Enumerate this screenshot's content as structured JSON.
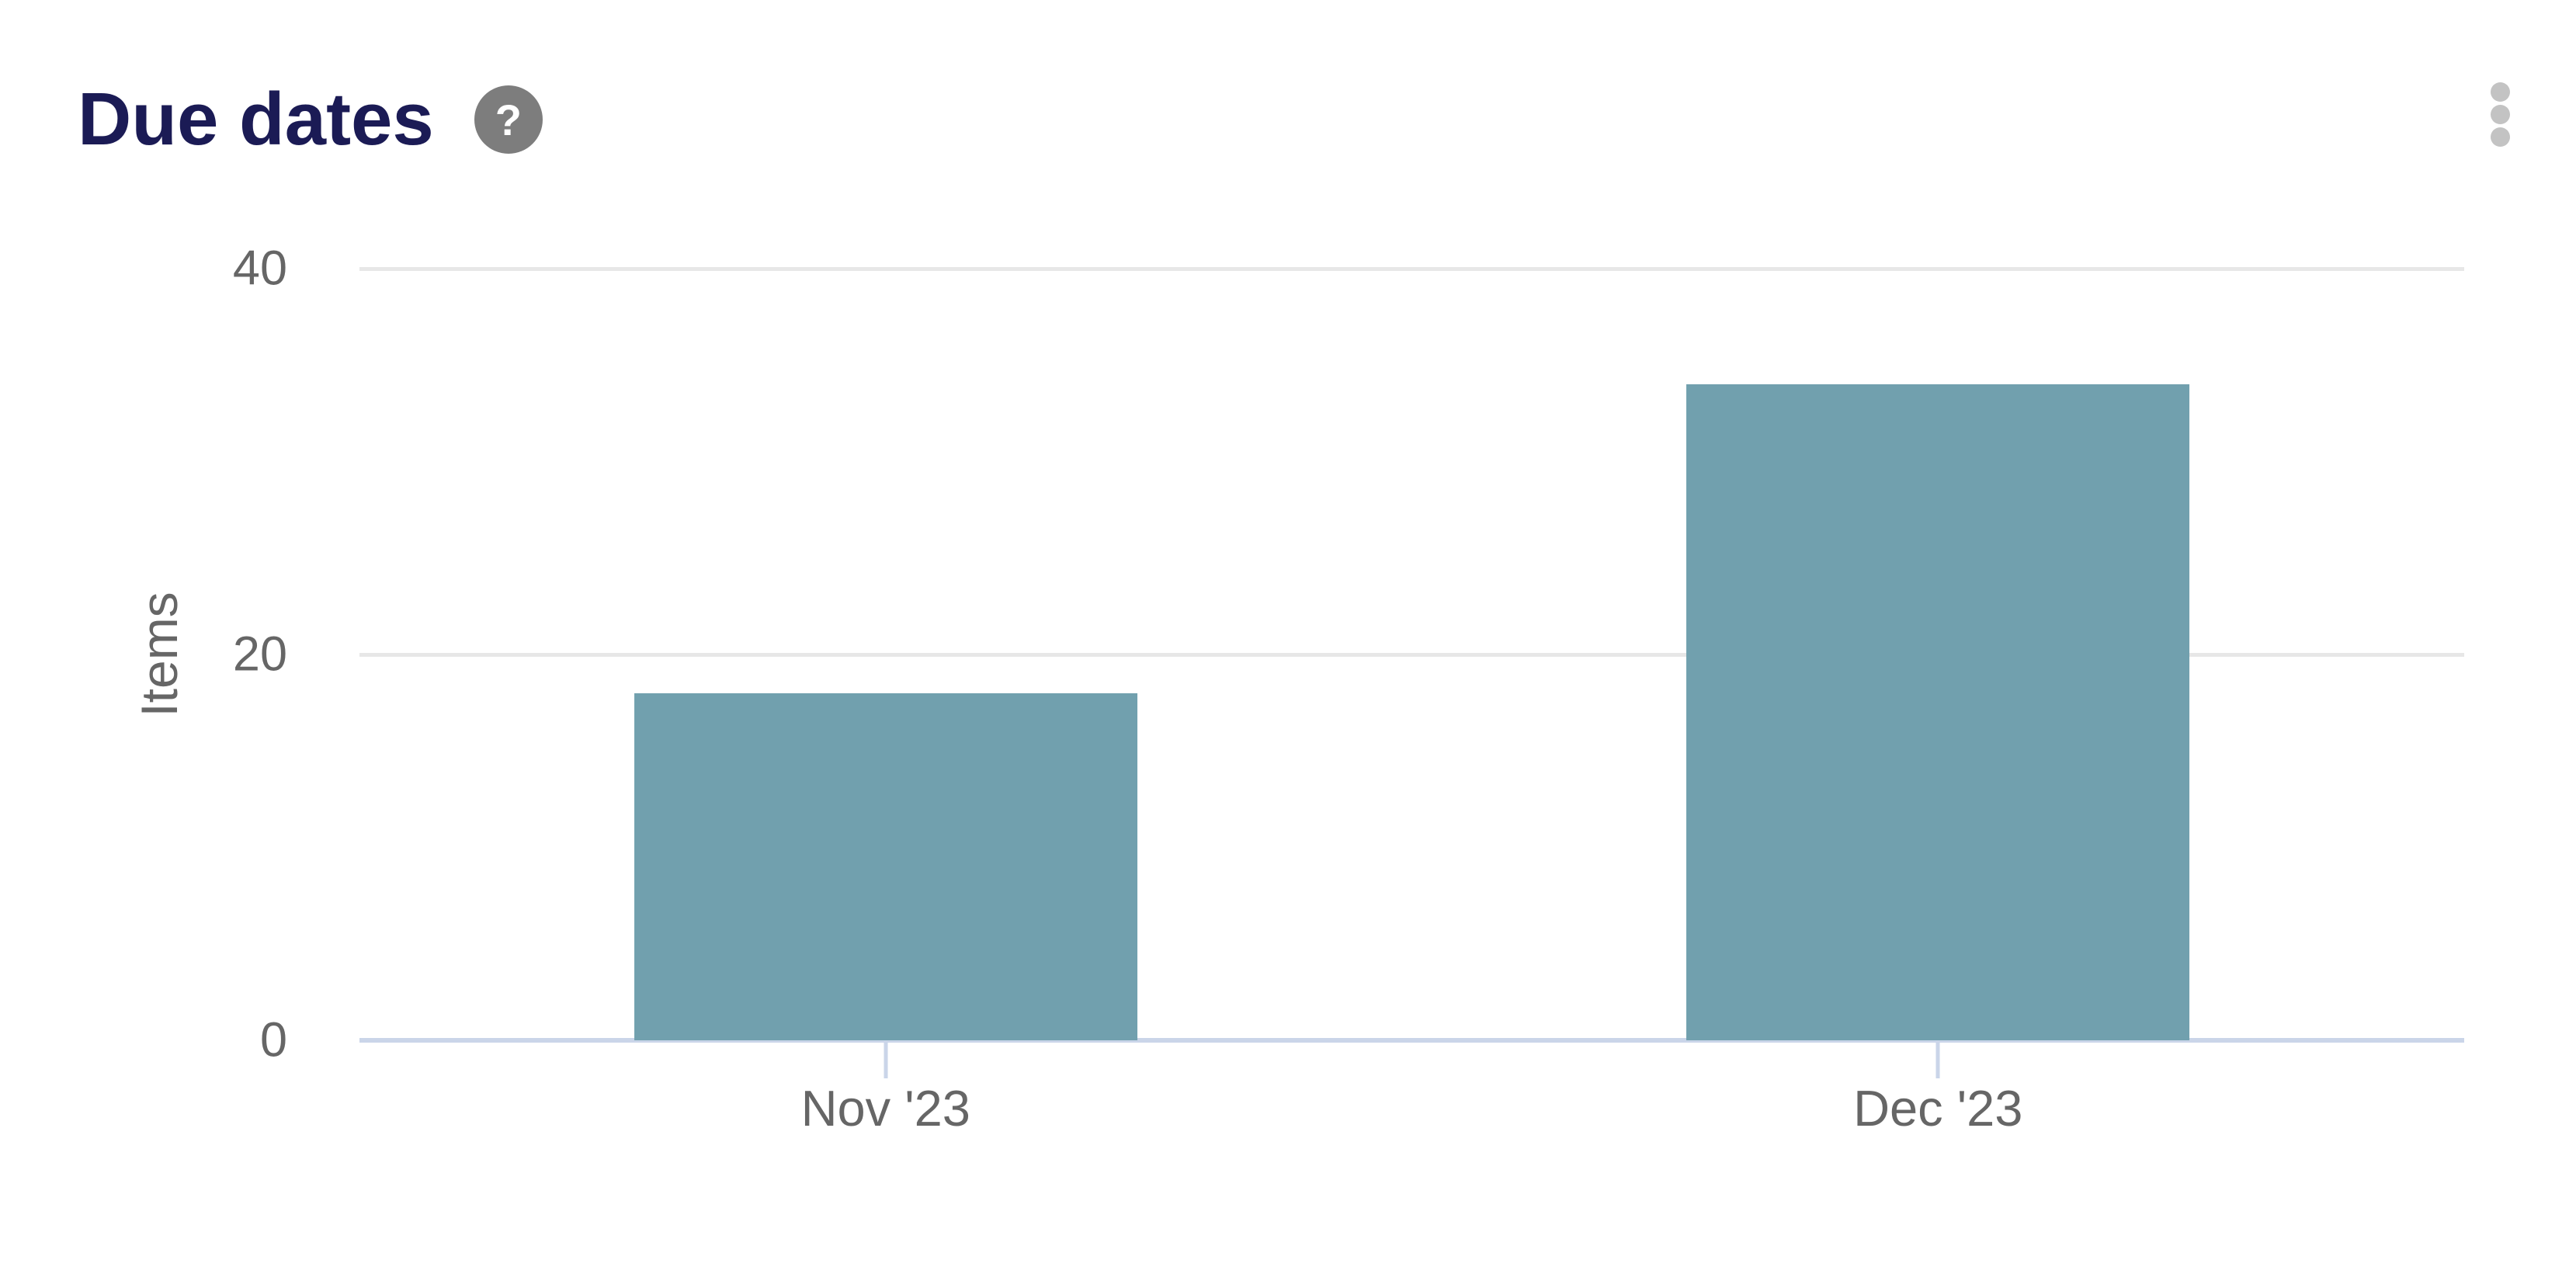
{
  "header": {
    "title": "Due dates",
    "help_icon_glyph": "?"
  },
  "colors": {
    "title_text": "#1b1b55",
    "axis_text": "#666666",
    "bar": "#71a0ae",
    "gridline": "#e7e7e7",
    "axis_line": "#cad5e9",
    "help_icon_bg": "#7d7d7d",
    "menu_dots": "#c3c3c3",
    "background": "#ffffff"
  },
  "chart_data": {
    "type": "bar",
    "title": "Due dates",
    "categories": [
      "Nov '23",
      "Dec '23"
    ],
    "values": [
      18,
      34
    ],
    "xlabel": "",
    "ylabel": "Items",
    "ylim": [
      0,
      40
    ],
    "yticks": [
      0,
      20,
      40
    ],
    "grid": "horizontal-gridlines",
    "legend": "none"
  }
}
